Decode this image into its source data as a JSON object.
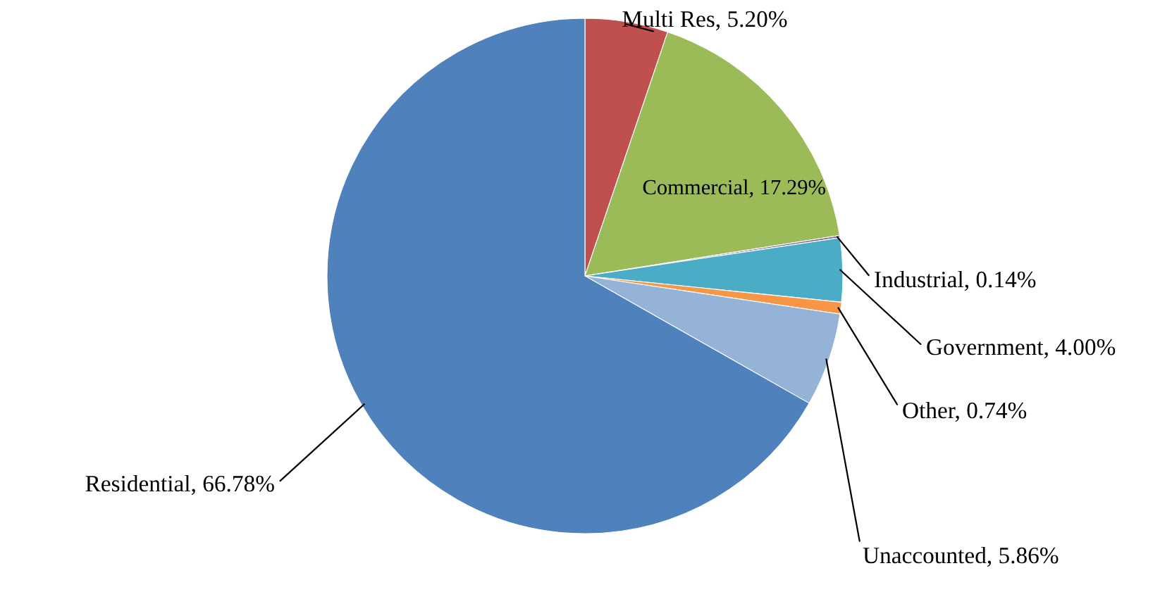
{
  "chart_data": {
    "type": "pie",
    "categories": [
      "Multi Res",
      "Commercial",
      "Industrial",
      "Government",
      "Other",
      "Unaccounted",
      "Residential"
    ],
    "values": [
      5.2,
      17.29,
      0.14,
      4.0,
      0.74,
      5.86,
      66.78
    ],
    "value_labels": [
      "5.20%",
      "17.29%",
      "0.14%",
      "4.00%",
      "0.74%",
      "5.86%",
      "66.78%"
    ],
    "colors": [
      "#c0504d",
      "#9bbb59",
      "#8064a2",
      "#4bacc6",
      "#f79646",
      "#95b3d7",
      "#4f81bd"
    ],
    "legend": false
  }
}
